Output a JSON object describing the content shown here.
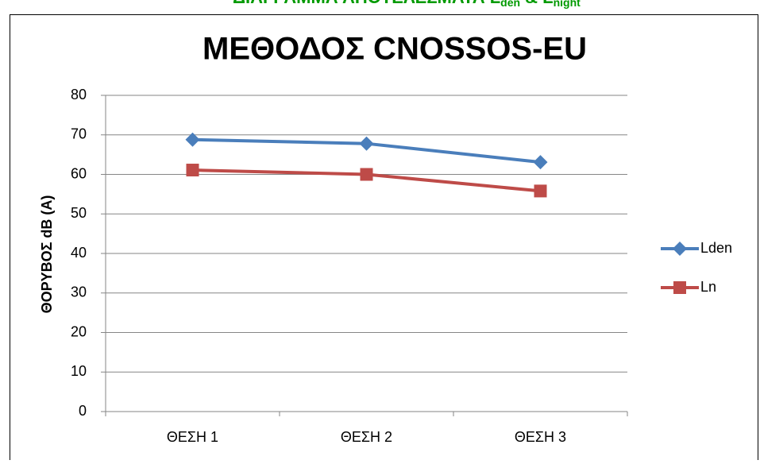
{
  "heading": {
    "main": "ΔΙΑΓΡΑΜΜΑ ΑΠΟΤΕΛΕΣΜΑΤΑ L",
    "sub1": "den",
    "mid": " & L",
    "sub2": "night"
  },
  "chart_data": {
    "type": "line",
    "title": "ΜΕΘΟΔΟΣ CNOSSOS-EU",
    "y_label": "ΘΟΡΥΒΟΣ dB (A)",
    "categories": [
      "ΘΕΣΗ 1",
      "ΘΕΣΗ 2",
      "ΘΕΣΗ 3"
    ],
    "series": [
      {
        "name": "Lden",
        "color": "#4a7ebb",
        "marker": "diamond",
        "values": [
          68.8,
          67.8,
          63.1
        ]
      },
      {
        "name": "Ln",
        "color": "#be4b48",
        "marker": "square",
        "values": [
          61.1,
          60,
          55.8
        ]
      }
    ],
    "ylim": [
      0,
      80
    ],
    "yticks": [
      0,
      10,
      20,
      30,
      40,
      50,
      60,
      70,
      80
    ],
    "grid": true,
    "legend": "right"
  }
}
